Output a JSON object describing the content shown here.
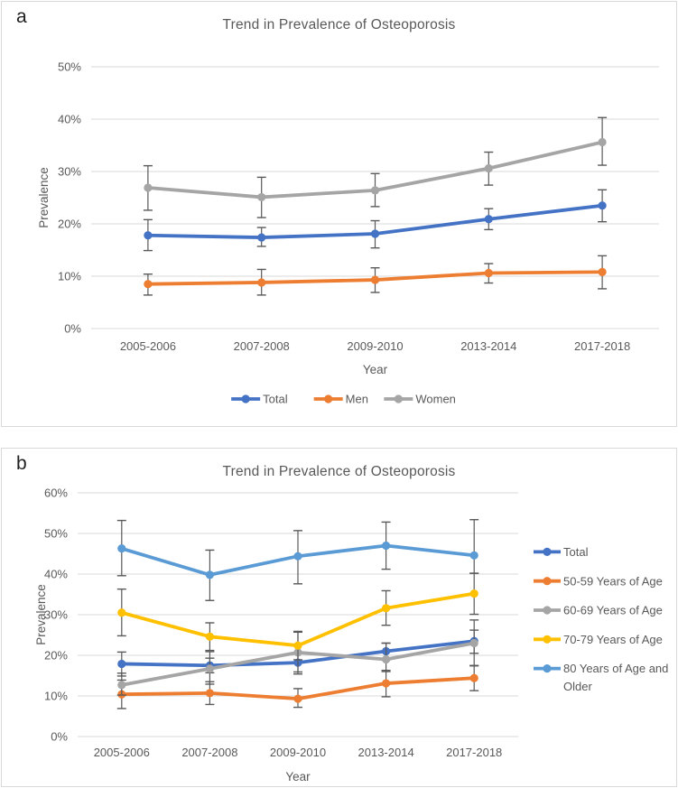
{
  "figure": {
    "background": "#ffffff",
    "panel_border_color": "#d9d9d9",
    "gridline_color": "#d9d9d9",
    "error_bar_color": "#595959",
    "text_color": "#595959"
  },
  "chart_data": [
    {
      "panel_label": "a",
      "type": "line",
      "title": "Trend in Prevalence of Osteoporosis",
      "xlabel": "Year",
      "ylabel": "Prevalence",
      "categories": [
        "2005-2006",
        "2007-2008",
        "2009-2010",
        "2013-2014",
        "2017-2018"
      ],
      "ylim": [
        0,
        50
      ],
      "ytick_step": 10,
      "ytick_suffix": "%",
      "grid": true,
      "error_bars": true,
      "legend_position": "bottom",
      "series": [
        {
          "name": "Total",
          "color": "#4472C4",
          "values": [
            17.8,
            17.4,
            18.1,
            20.9,
            23.5
          ],
          "ci_low": [
            14.9,
            15.7,
            15.4,
            18.9,
            20.4
          ],
          "ci_high": [
            20.8,
            19.3,
            20.6,
            22.9,
            26.5
          ]
        },
        {
          "name": "Men",
          "color": "#ED7D31",
          "values": [
            8.5,
            8.8,
            9.3,
            10.6,
            10.8
          ],
          "ci_low": [
            6.4,
            6.4,
            6.9,
            8.7,
            7.6
          ],
          "ci_high": [
            10.4,
            11.3,
            11.6,
            12.4,
            13.9
          ]
        },
        {
          "name": "Women",
          "color": "#A5A5A5",
          "values": [
            26.9,
            25.1,
            26.4,
            30.6,
            35.6
          ],
          "ci_low": [
            22.6,
            21.2,
            23.3,
            27.4,
            31.2
          ],
          "ci_high": [
            31.1,
            28.9,
            29.6,
            33.7,
            40.3
          ]
        }
      ]
    },
    {
      "panel_label": "b",
      "type": "line",
      "title": "Trend in Prevalence of Osteoporosis",
      "xlabel": "Year",
      "ylabel": "Prevalence",
      "categories": [
        "2005-2006",
        "2007-2008",
        "2009-2010",
        "2013-2014",
        "2017-2018"
      ],
      "ylim": [
        0,
        60
      ],
      "ytick_step": 10,
      "ytick_suffix": "%",
      "grid": true,
      "error_bars": true,
      "legend_position": "right",
      "series": [
        {
          "name": "Total",
          "color": "#4472C4",
          "values": [
            17.9,
            17.5,
            18.2,
            21.0,
            23.5
          ],
          "ci_low": [
            14.9,
            15.7,
            15.4,
            18.9,
            20.5
          ],
          "ci_high": [
            20.8,
            19.3,
            20.6,
            23.0,
            26.2
          ]
        },
        {
          "name": "50-59 Years of Age",
          "color": "#ED7D31",
          "values": [
            10.4,
            10.7,
            9.3,
            13.1,
            14.4
          ],
          "ci_low": [
            6.9,
            7.9,
            7.2,
            9.8,
            11.3
          ],
          "ci_high": [
            13.9,
            13.5,
            11.8,
            16.3,
            17.5
          ]
        },
        {
          "name": "60-69 Years of Age",
          "color": "#A5A5A5",
          "values": [
            12.7,
            16.7,
            20.7,
            19.0,
            23.0
          ],
          "ci_low": [
            10.2,
            12.9,
            15.9,
            16.0,
            17.4
          ],
          "ci_high": [
            15.6,
            20.9,
            25.7,
            23.0,
            28.7
          ]
        },
        {
          "name": "70-79 Years of Age",
          "color": "#FFC000",
          "values": [
            30.5,
            24.6,
            22.4,
            31.6,
            35.2
          ],
          "ci_low": [
            24.8,
            21.2,
            18.9,
            27.4,
            30.1
          ],
          "ci_high": [
            36.3,
            28.0,
            25.9,
            35.9,
            40.2
          ]
        },
        {
          "name": "80 Years of Age and Older",
          "color": "#5B9BD5",
          "values": [
            46.3,
            39.8,
            44.4,
            47.0,
            44.6
          ],
          "ci_low": [
            39.6,
            33.5,
            37.6,
            41.2,
            40.2
          ],
          "ci_high": [
            53.2,
            45.9,
            50.7,
            52.8,
            53.4
          ]
        }
      ]
    }
  ]
}
